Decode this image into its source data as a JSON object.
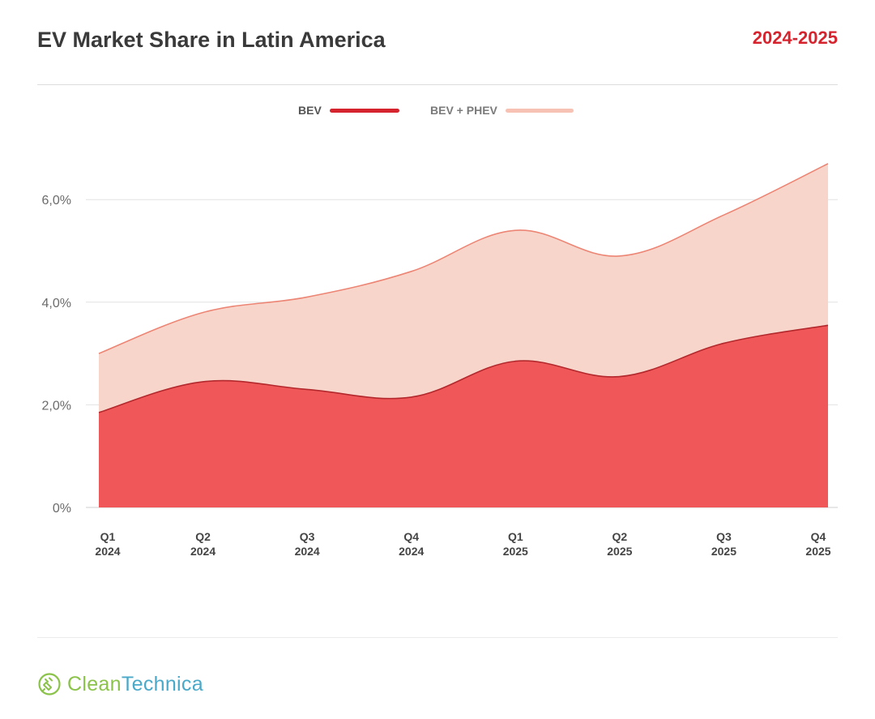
{
  "header": {
    "title": "EV Market Share in Latin America",
    "period": "2024-2025"
  },
  "legend": {
    "bev_label": "BEV",
    "total_label": "BEV + PHEV"
  },
  "brand": {
    "name_part1": "Clean",
    "name_part2": "Technica"
  },
  "colors": {
    "bev_fill": "#f05759",
    "bev_line": "#b3282c",
    "total_fill": "#f8d5cb",
    "total_line": "#ec8574",
    "accent": "#d6242f"
  },
  "chart_data": {
    "type": "area",
    "title": "EV Market Share in Latin America",
    "subtitle": "2024-2025",
    "xlabel": "",
    "ylabel": "",
    "categories": [
      {
        "quarter": "Q1",
        "year": "2024"
      },
      {
        "quarter": "Q2",
        "year": "2024"
      },
      {
        "quarter": "Q3",
        "year": "2024"
      },
      {
        "quarter": "Q4",
        "year": "2024"
      },
      {
        "quarter": "Q1",
        "year": "2025"
      },
      {
        "quarter": "Q2",
        "year": "2025"
      },
      {
        "quarter": "Q3",
        "year": "2025"
      },
      {
        "quarter": "Q4",
        "year": "2025"
      }
    ],
    "series": [
      {
        "name": "BEV + PHEV",
        "values": [
          3.0,
          3.8,
          4.1,
          4.6,
          5.4,
          4.9,
          5.7,
          6.7
        ]
      },
      {
        "name": "BEV",
        "values": [
          1.85,
          2.45,
          2.3,
          2.15,
          2.85,
          2.55,
          3.2,
          3.55
        ]
      }
    ],
    "ylim": [
      0,
      7.2
    ],
    "yticks": [
      0,
      2,
      4,
      6
    ],
    "ytick_labels": [
      "0%",
      "2,0%",
      "4,0%",
      "6,0%"
    ],
    "grid": true,
    "legend_position": "top-center"
  }
}
